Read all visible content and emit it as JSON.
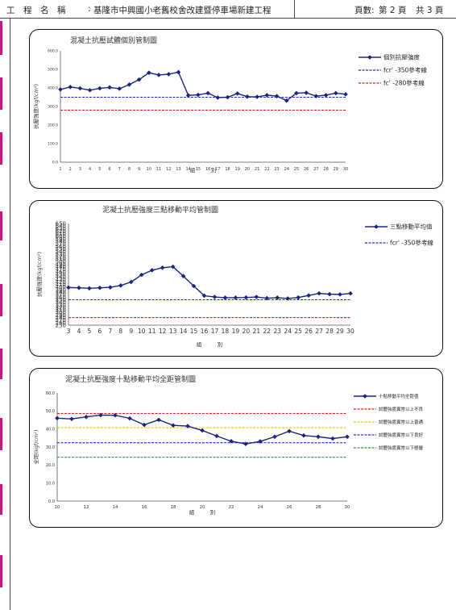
{
  "header": {
    "project_label": "工　程　名　稱",
    "colon": ":",
    "project_name": "基隆市中興國小老舊校舍改建暨停車場新建工程",
    "page_label": "頁數:",
    "page_current": "第 2 頁",
    "page_total": "共 3 頁"
  },
  "colors": {
    "series": "#1a237e",
    "ref_350": "#1a2fd0",
    "ref_280": "#e02020",
    "ucl_lcl_upper": "#e02020",
    "ucl_lcl_mid": "#e6c800",
    "lcl_blue": "#1a2fd0",
    "lcl_green": "#2a9a4a",
    "accent_bar": "#c8187c"
  },
  "chart_data": [
    {
      "type": "line",
      "title": "混凝土抗壓試體個別管制圖",
      "xlabel": "組　　　別",
      "ylabel": "抗壓強度(kgf/cm²)",
      "x": [
        1,
        2,
        3,
        4,
        5,
        6,
        7,
        8,
        9,
        10,
        11,
        12,
        13,
        14,
        15,
        16,
        17,
        18,
        19,
        20,
        21,
        22,
        23,
        24,
        25,
        26,
        27,
        28,
        29,
        30
      ],
      "xlim": [
        1,
        30
      ],
      "ylim": [
        0,
        600
      ],
      "yticks": [
        "0.0",
        "100.0",
        "200.0",
        "300.0",
        "400.0",
        "500.0",
        "600.0"
      ],
      "series": [
        {
          "name": "個別抗壓強度",
          "values": [
            392,
            405,
            398,
            388,
            398,
            403,
            396,
            418,
            445,
            482,
            470,
            474,
            485,
            360,
            363,
            372,
            348,
            350,
            370,
            353,
            352,
            361,
            356,
            332,
            372,
            374,
            356,
            361,
            372,
            366
          ]
        }
      ],
      "reference_lines": [
        {
          "name": "fcr' -350參考線",
          "value": 350,
          "style": "dashed",
          "color": "#1a2fd0"
        },
        {
          "name": "fc' -280參考線",
          "value": 280,
          "style": "dashed",
          "color": "#e02020"
        }
      ],
      "legend": "right"
    },
    {
      "type": "line",
      "title": "泥凝土抗壓強度三點移動平均管制圖",
      "xlabel": "組　　　別",
      "ylabel": "抗壓強度(kgf/cm²)",
      "x": [
        3,
        4,
        5,
        6,
        7,
        8,
        9,
        10,
        11,
        12,
        13,
        14,
        15,
        16,
        17,
        18,
        19,
        20,
        21,
        22,
        23,
        24,
        25,
        26,
        27,
        28,
        29,
        30
      ],
      "xlim": [
        3,
        30
      ],
      "ylim": [
        250,
        650
      ],
      "yticks": [
        "250",
        "260",
        "270",
        "280",
        "290",
        "300",
        "310",
        "320",
        "330",
        "340",
        "350",
        "360",
        "370",
        "380",
        "390",
        "400",
        "410",
        "420",
        "430",
        "440",
        "450",
        "460",
        "470",
        "480",
        "490",
        "500",
        "510",
        "520",
        "530",
        "540",
        "550",
        "560",
        "570",
        "580",
        "590",
        "600",
        "610",
        "620",
        "630",
        "640",
        "650"
      ],
      "series": [
        {
          "name": "三點移動平均值",
          "values": [
            398,
            397,
            395,
            397,
            399,
            406,
            420,
            448,
            466,
            476,
            480,
            443,
            404,
            366,
            361,
            358,
            358,
            359,
            361,
            356,
            358,
            355,
            359,
            367,
            375,
            372,
            371,
            375
          ]
        }
      ],
      "reference_lines": [
        {
          "name": "fcr' -350參考線",
          "value": 350,
          "style": "dashed",
          "color": "#1a2fd0"
        },
        {
          "name": "",
          "value": 280,
          "style": "dashed",
          "color": "#e02020"
        }
      ],
      "legend": "right"
    },
    {
      "type": "line",
      "title": "泥凝土抗壓強度十點移動平均全距管制圖",
      "xlabel": "組　　　別",
      "ylabel": "全距(kgf/cm²)",
      "x": [
        10,
        11,
        12,
        13,
        14,
        15,
        16,
        17,
        18,
        19,
        20,
        21,
        22,
        23,
        24,
        25,
        26,
        27,
        28,
        29,
        30
      ],
      "xlim": [
        10,
        30
      ],
      "ylim": [
        0,
        60
      ],
      "xticks": [
        "10",
        "12",
        "14",
        "16",
        "18",
        "20",
        "22",
        "24",
        "26",
        "28",
        "30"
      ],
      "yticks": [
        "0.0",
        "10.0",
        "20.0",
        "30.0",
        "40.0",
        "50.0",
        "60.0"
      ],
      "series": [
        {
          "name": "十點移動平均全距值",
          "values": [
            46.0,
            45.6,
            46.7,
            47.7,
            47.6,
            45.9,
            42.3,
            45.1,
            42.0,
            41.6,
            39.2,
            36.1,
            33.2,
            31.7,
            33.1,
            35.7,
            38.8,
            36.4,
            35.7,
            34.7,
            35.7
          ]
        }
      ],
      "reference_lines": [
        {
          "name": "試體強度異常以上不良",
          "value": 48.6,
          "style": "dashed",
          "color": "#e02020"
        },
        {
          "name": "試體強度異常以上普通",
          "value": 40.7,
          "style": "dashed",
          "color": "#e6c800"
        },
        {
          "name": "試體強度異常以下良好",
          "value": 32.4,
          "style": "dashed",
          "color": "#1a2fd0"
        },
        {
          "name": "試體強度異常以下極優",
          "value": 24.3,
          "style": "dashed",
          "color": "#2a9a4a"
        }
      ],
      "legend": "right"
    }
  ]
}
